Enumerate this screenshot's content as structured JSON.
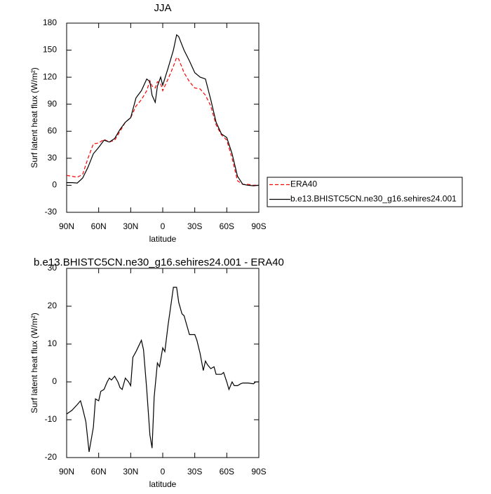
{
  "chart_data": [
    {
      "type": "line",
      "title": "JJA",
      "xlabel": "latitude",
      "ylabel": "Surf latent heat flux (W/m²)",
      "x": [
        90,
        85,
        80,
        75,
        70,
        65,
        60,
        55,
        50,
        45,
        40,
        35,
        30,
        25,
        20,
        15,
        12,
        10,
        7,
        5,
        2,
        0,
        -5,
        -10,
        -13,
        -15,
        -20,
        -25,
        -30,
        -35,
        -40,
        -45,
        -50,
        -55,
        -60,
        -65,
        -70,
        -75,
        -80,
        -85,
        -90
      ],
      "xlim": [
        90,
        -90
      ],
      "xticks": [
        {
          "value": 90,
          "label": "90N"
        },
        {
          "value": 60,
          "label": "60N"
        },
        {
          "value": 30,
          "label": "30N"
        },
        0,
        {
          "value": -30,
          "label": "30S"
        },
        {
          "value": -60,
          "label": "60S"
        },
        {
          "value": -90,
          "label": "90S"
        }
      ],
      "ylim": [
        -30,
        180
      ],
      "yticks": [
        -30,
        0,
        30,
        60,
        90,
        120,
        150,
        180
      ],
      "legend": "outside-right",
      "series": [
        {
          "name": "ERA40",
          "color": "#ff0000",
          "style": "dashed",
          "values": [
            11,
            10,
            9,
            12,
            30,
            46,
            47,
            51,
            48,
            50,
            60,
            70,
            75,
            88,
            95,
            105,
            116,
            110,
            108,
            115,
            113,
            105,
            118,
            132,
            142,
            140,
            125,
            115,
            108,
            107,
            100,
            88,
            67,
            56,
            50,
            30,
            5,
            1,
            1,
            0,
            0
          ]
        },
        {
          "name": "b.e13.BHISTC5CN.ne30_g16.sehires24.001",
          "color": "#000000",
          "style": "solid",
          "values": [
            3,
            3,
            2.5,
            8,
            20,
            35,
            42,
            50,
            48,
            52,
            62,
            70,
            75,
            97,
            105,
            118,
            115,
            100,
            92,
            110,
            120,
            111,
            130,
            150,
            167,
            165,
            150,
            138,
            125,
            120,
            118,
            95,
            70,
            57,
            53,
            35,
            10,
            1,
            0,
            -0.5,
            0
          ]
        }
      ]
    },
    {
      "type": "line",
      "title": "b.e13.BHISTC5CN.ne30_g16.sehires24.001 - ERA40",
      "xlabel": "latitude",
      "ylabel": "Surf latent heat flux (W/m²)",
      "x": [
        90,
        85,
        80,
        77,
        75,
        72,
        69,
        65,
        63,
        60,
        58,
        55,
        52,
        50,
        48,
        45,
        42,
        40,
        38,
        35,
        32,
        30,
        28,
        25,
        20,
        18,
        15,
        12,
        10,
        8,
        5,
        3,
        0,
        -2,
        -5,
        -8,
        -10,
        -13,
        -15,
        -18,
        -20,
        -25,
        -28,
        -30,
        -32,
        -35,
        -38,
        -40,
        -42,
        -45,
        -48,
        -50,
        -55,
        -57,
        -60,
        -62,
        -65,
        -67,
        -70,
        -73,
        -75,
        -80,
        -85,
        -87,
        -90
      ],
      "xlim": [
        90,
        -90
      ],
      "xticks": [
        {
          "value": 90,
          "label": "90N"
        },
        {
          "value": 60,
          "label": "60N"
        },
        {
          "value": 30,
          "label": "30N"
        },
        0,
        {
          "value": -30,
          "label": "30S"
        },
        {
          "value": -60,
          "label": "60S"
        },
        {
          "value": -90,
          "label": "90S"
        }
      ],
      "ylim": [
        -20,
        30
      ],
      "yticks": [
        -20,
        -10,
        0,
        10,
        20,
        30
      ],
      "color": "#000000",
      "values": [
        -8.5,
        -7.5,
        -6,
        -5,
        -7,
        -10.5,
        -18.5,
        -12,
        -4.5,
        -5,
        -2.5,
        -2,
        0,
        1,
        0.5,
        1.5,
        0,
        -1.5,
        -2,
        1,
        0,
        -1,
        6.5,
        8,
        11,
        8.5,
        -2,
        -14,
        -17.5,
        -4,
        5,
        4,
        9,
        8,
        15,
        21,
        25,
        25,
        21,
        18,
        17.5,
        12.5,
        12.5,
        12.5,
        11,
        7.5,
        3,
        5.5,
        4.5,
        3.5,
        4,
        2,
        2,
        2.5,
        0,
        -2,
        0,
        -1,
        -1,
        -0.5,
        -0.3,
        -0.3,
        -0.5,
        0,
        0
      ]
    }
  ]
}
